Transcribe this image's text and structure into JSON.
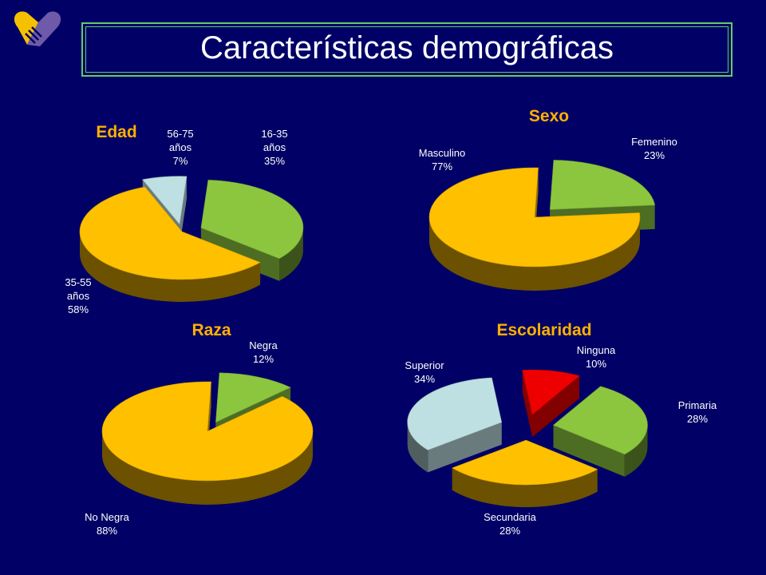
{
  "page": {
    "title": "Características demográficas"
  },
  "colors": {
    "background": "#000066",
    "title_text": "#ffffff",
    "title_border": "#66cc66",
    "chart_title": "#ffb000",
    "label_text": "#ffffff",
    "logo_heart_gold": "#f5c000",
    "logo_heart_purple": "#6e5aa8"
  },
  "logo": {
    "icon": "heart-handshake-icon"
  },
  "chart_data": [
    {
      "id": "edad",
      "type": "pie",
      "style": "3d-exploded",
      "title": "Edad",
      "slices": [
        {
          "label": "16-35 años",
          "label_lines": [
            "16-35",
            "años",
            "35%"
          ],
          "value": 35,
          "color": "#8cc63f"
        },
        {
          "label": "35-55 años",
          "label_lines": [
            "35-55",
            "años",
            "58%"
          ],
          "value": 58,
          "color": "#ffc000"
        },
        {
          "label": "56-75 años",
          "label_lines": [
            "56-75",
            "años",
            "7%"
          ],
          "value": 7,
          "color": "#bfe0e3"
        }
      ]
    },
    {
      "id": "sexo",
      "type": "pie",
      "style": "3d-exploded",
      "title": "Sexo",
      "slices": [
        {
          "label": "Femenino",
          "label_lines": [
            "Femenino",
            "23%"
          ],
          "value": 23,
          "color": "#8cc63f"
        },
        {
          "label": "Masculino",
          "label_lines": [
            "Masculino",
            "77%"
          ],
          "value": 77,
          "color": "#ffc000"
        }
      ]
    },
    {
      "id": "raza",
      "type": "pie",
      "style": "3d-exploded",
      "title": "Raza",
      "slices": [
        {
          "label": "Negra",
          "label_lines": [
            "Negra",
            "12%"
          ],
          "value": 12,
          "color": "#8cc63f"
        },
        {
          "label": "No Negra",
          "label_lines": [
            "No Negra",
            "88%"
          ],
          "value": 88,
          "color": "#ffc000"
        }
      ]
    },
    {
      "id": "escolaridad",
      "type": "pie",
      "style": "3d-exploded",
      "title": "Escolaridad",
      "slices": [
        {
          "label": "Ninguna",
          "label_lines": [
            "Ninguna",
            "10%"
          ],
          "value": 10,
          "color": "#ee0000"
        },
        {
          "label": "Primaria",
          "label_lines": [
            "Primaria",
            "28%"
          ],
          "value": 28,
          "color": "#8cc63f"
        },
        {
          "label": "Secundaria",
          "label_lines": [
            "Secundaria",
            "28%"
          ],
          "value": 28,
          "color": "#ffc000"
        },
        {
          "label": "Superior",
          "label_lines": [
            "Superior",
            "34%"
          ],
          "value": 34,
          "color": "#bfe0e3"
        }
      ]
    }
  ]
}
